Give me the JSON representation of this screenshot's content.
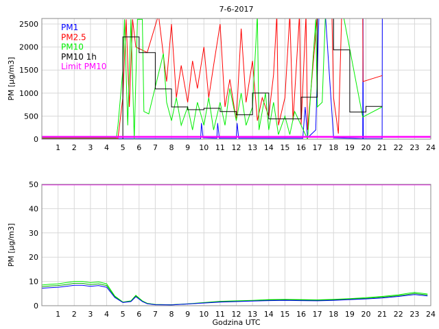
{
  "chart_data": [
    {
      "type": "line",
      "title": "7-6-2017",
      "ylabel": "PM [µg/m3]",
      "xlabel": "",
      "xlim": [
        0,
        24
      ],
      "ylim": [
        0,
        2620
      ],
      "xticks": [
        1,
        2,
        3,
        4,
        5,
        6,
        7,
        8,
        9,
        10,
        11,
        12,
        13,
        14,
        15,
        16,
        17,
        18,
        19,
        20,
        21,
        22,
        23,
        24
      ],
      "yticks": [
        0,
        500,
        1000,
        1500,
        2000,
        2500
      ],
      "grid": true,
      "legend_position": "top-left",
      "series": [
        {
          "name": "PM1",
          "color": "#0000ff",
          "points": [
            [
              0,
              10
            ],
            [
              5,
              10
            ],
            [
              9.8,
              10
            ],
            [
              9.85,
              350
            ],
            [
              9.95,
              30
            ],
            [
              10.8,
              20
            ],
            [
              10.85,
              350
            ],
            [
              10.95,
              20
            ],
            [
              12,
              20
            ],
            [
              12.05,
              350
            ],
            [
              12.15,
              20
            ],
            [
              16.1,
              20
            ],
            [
              16.25,
              700
            ],
            [
              16.4,
              30
            ],
            [
              16.9,
              200
            ],
            [
              17.1,
              2700
            ],
            [
              17.5,
              2700
            ],
            [
              18,
              30
            ],
            [
              19.8,
              10
            ],
            [
              19.82,
              2700
            ],
            [
              19.84,
              10
            ],
            [
              21,
              10
            ],
            [
              21.01,
              2700
            ]
          ]
        },
        {
          "name": "PM2.5",
          "color": "#ff0000",
          "points": [
            [
              0,
              20
            ],
            [
              4.7,
              20
            ],
            [
              5,
              900
            ],
            [
              5.2,
              2600
            ],
            [
              5.4,
              700
            ],
            [
              5.6,
              2600
            ],
            [
              5.8,
              2000
            ],
            [
              6.5,
              1880
            ],
            [
              7.2,
              2700
            ],
            [
              7.7,
              1250
            ],
            [
              8,
              2500
            ],
            [
              8.3,
              900
            ],
            [
              8.6,
              1600
            ],
            [
              9,
              800
            ],
            [
              9.3,
              1700
            ],
            [
              9.6,
              1100
            ],
            [
              10,
              2000
            ],
            [
              10.3,
              900
            ],
            [
              10.6,
              1600
            ],
            [
              11,
              2500
            ],
            [
              11.3,
              700
            ],
            [
              11.6,
              1300
            ],
            [
              12,
              400
            ],
            [
              12.3,
              2400
            ],
            [
              12.6,
              800
            ],
            [
              13,
              1700
            ],
            [
              13.3,
              400
            ],
            [
              13.6,
              900
            ],
            [
              14,
              500
            ],
            [
              14.3,
              1400
            ],
            [
              14.5,
              2700
            ],
            [
              14.6,
              300
            ],
            [
              15,
              900
            ],
            [
              15.3,
              2700
            ],
            [
              15.5,
              400
            ],
            [
              15.9,
              2700
            ],
            [
              16,
              300
            ],
            [
              16.3,
              2700
            ],
            [
              16.4,
              200
            ],
            [
              17,
              2700
            ],
            [
              17.9,
              2700
            ],
            [
              18,
              900
            ],
            [
              18.3,
              120
            ],
            [
              18.5,
              2700
            ],
            [
              19.8,
              2700
            ],
            [
              19.82,
              1250
            ],
            [
              21,
              1380
            ]
          ]
        },
        {
          "name": "PM10",
          "color": "#00ee00",
          "points": [
            [
              0,
              30
            ],
            [
              4.6,
              30
            ],
            [
              4.7,
              300
            ],
            [
              5,
              1500
            ],
            [
              5.1,
              2600
            ],
            [
              5.3,
              300
            ],
            [
              5.5,
              2600
            ],
            [
              5.7,
              0
            ],
            [
              5.9,
              2600
            ],
            [
              6.2,
              2600
            ],
            [
              6.3,
              600
            ],
            [
              6.6,
              550
            ],
            [
              7.5,
              1860
            ],
            [
              7.7,
              800
            ],
            [
              8,
              400
            ],
            [
              8.3,
              900
            ],
            [
              8.6,
              300
            ],
            [
              9,
              700
            ],
            [
              9.3,
              200
            ],
            [
              9.6,
              800
            ],
            [
              10,
              300
            ],
            [
              10.3,
              900
            ],
            [
              10.6,
              200
            ],
            [
              11,
              800
            ],
            [
              11.3,
              300
            ],
            [
              11.6,
              1100
            ],
            [
              12,
              400
            ],
            [
              12.3,
              1000
            ],
            [
              12.6,
              300
            ],
            [
              13,
              700
            ],
            [
              13.3,
              2700
            ],
            [
              13.4,
              200
            ],
            [
              13.8,
              1000
            ],
            [
              14,
              200
            ],
            [
              14.3,
              800
            ],
            [
              14.6,
              100
            ],
            [
              15,
              500
            ],
            [
              15.3,
              100
            ],
            [
              15.6,
              600
            ],
            [
              16,
              300
            ],
            [
              16.4,
              0
            ],
            [
              16.9,
              2600
            ],
            [
              17,
              700
            ],
            [
              17.3,
              800
            ],
            [
              17.5,
              2700
            ],
            [
              18.6,
              2700
            ],
            [
              19.8,
              480
            ],
            [
              21,
              700
            ]
          ]
        },
        {
          "name": "PM10 1h",
          "color": "#000000",
          "step": true,
          "points": [
            [
              5,
              2220
            ],
            [
              6,
              1880
            ],
            [
              7,
              1090
            ],
            [
              8,
              700
            ],
            [
              9,
              640
            ],
            [
              10,
              670
            ],
            [
              11,
              600
            ],
            [
              12,
              530
            ],
            [
              13,
              1000
            ],
            [
              14,
              440
            ],
            [
              16,
              910
            ],
            [
              17,
              2700
            ],
            [
              18,
              1940
            ],
            [
              19,
              590
            ],
            [
              20,
              710
            ],
            [
              21,
              710
            ]
          ]
        },
        {
          "name": "Limit PM10",
          "color": "#ff00ff",
          "points": [
            [
              0,
              50
            ],
            [
              24,
              50
            ]
          ]
        }
      ]
    },
    {
      "type": "line",
      "title": "",
      "ylabel": "PM [µg/m3]",
      "xlabel": "Godzina UTC",
      "xlim": [
        0,
        24
      ],
      "ylim": [
        0,
        50
      ],
      "xticks": [
        1,
        2,
        3,
        4,
        5,
        6,
        7,
        8,
        9,
        10,
        11,
        12,
        13,
        14,
        15,
        16,
        17,
        18,
        19,
        20,
        21,
        22,
        23,
        24
      ],
      "yticks": [
        0,
        10,
        20,
        30,
        40,
        50
      ],
      "grid": true,
      "series": [
        {
          "name": "PM10",
          "color": "#00ee00",
          "points": [
            [
              0,
              8.5
            ],
            [
              0.5,
              8.8
            ],
            [
              1,
              9
            ],
            [
              1.5,
              9.5
            ],
            [
              2,
              10
            ],
            [
              2.5,
              10
            ],
            [
              3,
              9.5
            ],
            [
              3.5,
              9.8
            ],
            [
              4,
              9
            ],
            [
              4.5,
              4
            ],
            [
              5,
              1.5
            ],
            [
              5.5,
              2
            ],
            [
              5.8,
              4.3
            ],
            [
              6.2,
              2
            ],
            [
              6.5,
              1
            ],
            [
              7,
              0.5
            ],
            [
              8,
              0.4
            ],
            [
              9,
              0.8
            ],
            [
              10,
              1.3
            ],
            [
              11,
              1.8
            ],
            [
              12,
              2
            ],
            [
              13,
              2.2
            ],
            [
              14,
              2.5
            ],
            [
              15,
              2.6
            ],
            [
              16,
              2.5
            ],
            [
              17,
              2.4
            ],
            [
              18,
              2.6
            ],
            [
              19,
              2.9
            ],
            [
              20,
              3.3
            ],
            [
              21,
              3.8
            ],
            [
              22,
              4.5
            ],
            [
              23,
              5.5
            ],
            [
              23.8,
              4.8
            ]
          ]
        },
        {
          "name": "PM2.5",
          "color": "#00aa00",
          "points": [
            [
              0,
              7.8
            ],
            [
              0.5,
              8.1
            ],
            [
              1,
              8.3
            ],
            [
              1.5,
              8.7
            ],
            [
              2,
              9.2
            ],
            [
              2.5,
              9.2
            ],
            [
              3,
              8.7
            ],
            [
              3.5,
              9
            ],
            [
              4,
              8.3
            ],
            [
              4.5,
              3.7
            ],
            [
              5,
              1.4
            ],
            [
              5.5,
              1.8
            ],
            [
              5.8,
              4
            ],
            [
              6.2,
              1.8
            ],
            [
              6.5,
              0.9
            ],
            [
              7,
              0.5
            ],
            [
              8,
              0.4
            ],
            [
              9,
              0.7
            ],
            [
              10,
              1.2
            ],
            [
              11,
              1.7
            ],
            [
              12,
              1.8
            ],
            [
              13,
              2
            ],
            [
              14,
              2.3
            ],
            [
              15,
              2.4
            ],
            [
              16,
              2.3
            ],
            [
              17,
              2.2
            ],
            [
              18,
              2.4
            ],
            [
              19,
              2.7
            ],
            [
              20,
              3
            ],
            [
              21,
              3.5
            ],
            [
              22,
              4.1
            ],
            [
              23,
              5
            ],
            [
              23.8,
              4.4
            ]
          ]
        },
        {
          "name": "PM1",
          "color": "#0000ff",
          "points": [
            [
              0,
              7.2
            ],
            [
              0.5,
              7.4
            ],
            [
              1,
              7.6
            ],
            [
              1.5,
              8
            ],
            [
              2,
              8.4
            ],
            [
              2.5,
              8.4
            ],
            [
              3,
              8
            ],
            [
              3.5,
              8.3
            ],
            [
              4,
              7.6
            ],
            [
              4.5,
              3.4
            ],
            [
              5,
              1.3
            ],
            [
              5.5,
              1.7
            ],
            [
              5.8,
              3.7
            ],
            [
              6.2,
              1.7
            ],
            [
              6.5,
              0.8
            ],
            [
              7,
              0.4
            ],
            [
              8,
              0.3
            ],
            [
              9,
              0.7
            ],
            [
              10,
              1.1
            ],
            [
              11,
              1.5
            ],
            [
              12,
              1.7
            ],
            [
              13,
              1.9
            ],
            [
              14,
              2.1
            ],
            [
              15,
              2.2
            ],
            [
              16,
              2.1
            ],
            [
              17,
              2
            ],
            [
              18,
              2.2
            ],
            [
              19,
              2.5
            ],
            [
              20,
              2.8
            ],
            [
              21,
              3.2
            ],
            [
              22,
              3.8
            ],
            [
              23,
              4.6
            ],
            [
              23.8,
              4
            ]
          ]
        },
        {
          "name": "Limit PM10",
          "color": "#ff00ff",
          "points": [
            [
              0,
              50
            ],
            [
              24,
              50
            ]
          ]
        }
      ]
    }
  ]
}
